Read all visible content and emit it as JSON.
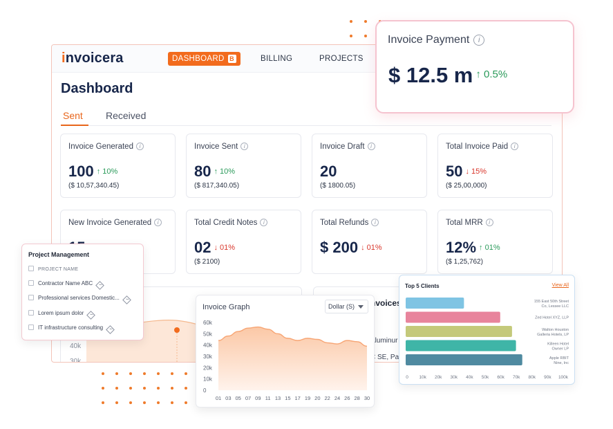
{
  "nav": {
    "logo_first": "i",
    "logo_rest": "nvoicera",
    "dashboard_label": "DASHBOARD",
    "dashboard_badge": "B",
    "billing_label": "BILLING",
    "projects_label": "PROJECTS"
  },
  "page_title": "Dashboard",
  "tabs": {
    "sent": "Sent",
    "received": "Received"
  },
  "cards": [
    {
      "title": "Invoice Generated",
      "value": "100",
      "trend": "↑ 10%",
      "direction": "up",
      "sub": "($ 10,57,340.45)"
    },
    {
      "title": "Invoice Sent",
      "value": "80",
      "trend": "↑ 10%",
      "direction": "up",
      "sub": "($ 817,340.05)"
    },
    {
      "title": "Invoice Draft",
      "value": "20",
      "trend": "",
      "direction": "",
      "sub": "($ 1800.05)"
    },
    {
      "title": "Total Invoice Paid",
      "value": "50",
      "trend": "↓ 15%",
      "direction": "down",
      "sub": "($ 25,00,000)"
    },
    {
      "title": "New Invoice Generated",
      "value": "15",
      "trend": "",
      "direction": "",
      "sub": ""
    },
    {
      "title": "Total Credit Notes",
      "value": "02",
      "trend": "↓ 01%",
      "direction": "down",
      "sub": "($ 2100)"
    },
    {
      "title": "Total Refunds",
      "value": "$ 200",
      "trend": "↓ 01%",
      "direction": "down",
      "sub": ""
    },
    {
      "title": "Total MRR",
      "value": "12%",
      "trend": "↑ 01%",
      "direction": "up",
      "sub": "($ 1,25,762)"
    }
  ],
  "background_chart": {
    "ylabels": [
      "50k",
      "40k",
      "30k"
    ]
  },
  "invoices_card": {
    "title": "nvoices",
    "row1": "Aluminur",
    "row2": "C SE, Par"
  },
  "payment": {
    "title": "Invoice Payment",
    "info": "i",
    "value": "$ 12.5 m",
    "trend": "↑ 0.5%"
  },
  "project_management": {
    "title": "Project Management",
    "header": "PROJECT NAME",
    "rows": [
      "Contractor Name ABC",
      "Professional services Domestic...",
      "Lorem ipsum dolor",
      "IT infrastructure consulting"
    ]
  },
  "invoice_graph": {
    "title": "Invoice Graph",
    "select_value": "Dollar (S)"
  },
  "top_clients": {
    "title": "Top 5 Clients",
    "view_all": "View All"
  },
  "chart_data": [
    {
      "type": "area",
      "title": "Invoice Graph",
      "x": [
        "01",
        "03",
        "05",
        "07",
        "09",
        "11",
        "13",
        "15",
        "17",
        "19",
        "20",
        "22",
        "24",
        "26",
        "28",
        "30"
      ],
      "y": [
        44000,
        48000,
        52000,
        55000,
        56000,
        54000,
        50000,
        46000,
        44000,
        46000,
        45000,
        42000,
        41000,
        44000,
        43000,
        39000
      ],
      "yticks": [
        "60k",
        "50k",
        "40k",
        "30k",
        "20k",
        "10k",
        "0"
      ],
      "ylim": [
        0,
        60000
      ],
      "color": "#f7a574"
    },
    {
      "type": "bar",
      "orientation": "horizontal",
      "title": "Top 5 Clients",
      "categories": [
        [
          "155 East 50th Street",
          "Co, Lessee LLC"
        ],
        [
          "Zed Hotel XYZ, LLP"
        ],
        [
          "Walton Houston",
          "Galleria Hotels, LP"
        ],
        [
          "Killeen Hotel",
          "Owner LP"
        ],
        [
          "Apple RBIT",
          "Nine, Inc"
        ]
      ],
      "values": [
        37000,
        60000,
        67500,
        70000,
        74000
      ],
      "colors": [
        "#7fc4e3",
        "#e8849c",
        "#c4c97a",
        "#3fb5a7",
        "#4f8aa0"
      ],
      "xticks": [
        "0",
        "10k",
        "20k",
        "30k",
        "40k",
        "50k",
        "60k",
        "70k",
        "80k",
        "90k",
        "100k"
      ],
      "xlim": [
        0,
        100000
      ]
    }
  ]
}
